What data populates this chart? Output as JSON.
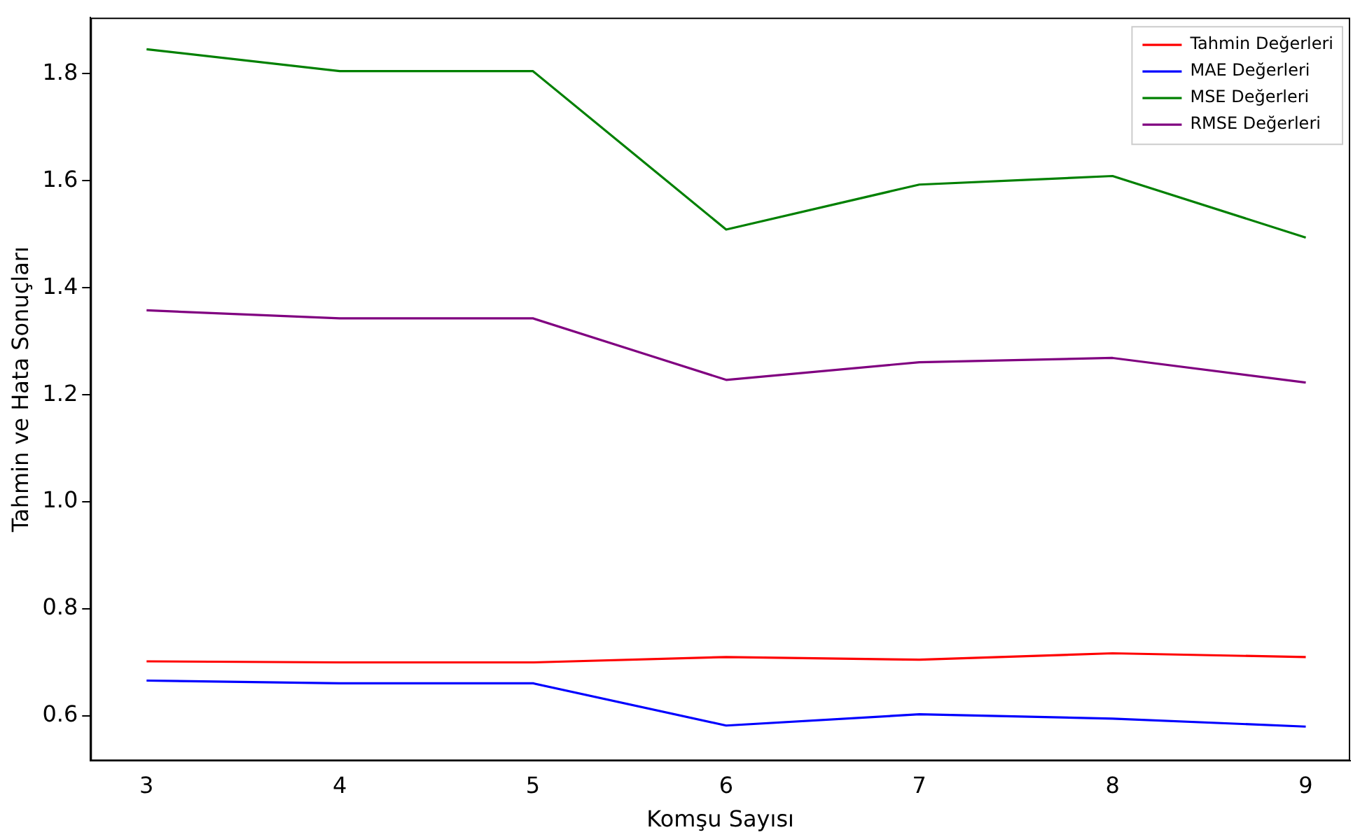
{
  "chart_data": {
    "type": "line",
    "xlabel": "Komşu Sayısı",
    "ylabel": "Tahmin ve Hata Sonuçları",
    "x": [
      3,
      4,
      5,
      6,
      7,
      8,
      9
    ],
    "series": [
      {
        "name": "Tahmin Değerleri",
        "color": "#ff0000",
        "values": [
          0.702,
          0.7,
          0.7,
          0.71,
          0.705,
          0.717,
          0.71
        ]
      },
      {
        "name": "MAE Değerleri",
        "color": "#0000ff",
        "values": [
          0.666,
          0.661,
          0.661,
          0.582,
          0.603,
          0.595,
          0.58
        ]
      },
      {
        "name": "MSE Değerleri",
        "color": "#008000",
        "values": [
          1.846,
          1.805,
          1.805,
          1.509,
          1.593,
          1.609,
          1.494
        ]
      },
      {
        "name": "RMSE Değerleri",
        "color": "#800080",
        "values": [
          1.358,
          1.343,
          1.343,
          1.228,
          1.261,
          1.269,
          1.223
        ]
      }
    ],
    "xlim": [
      2.71,
      9.23
    ],
    "xticks": [
      3,
      4,
      5,
      6,
      7,
      8,
      9
    ],
    "ylim": [
      0.516,
      1.905
    ],
    "yticks": [
      {
        "value": 0.6,
        "label": "0.6"
      },
      {
        "value": 0.8,
        "label": "0.8"
      },
      {
        "value": 1.0,
        "label": "1.0"
      },
      {
        "value": 1.2,
        "label": "1.2"
      },
      {
        "value": 1.4,
        "label": "1.4"
      },
      {
        "value": 1.6,
        "label": "1.6"
      },
      {
        "value": 1.8,
        "label": "1.8"
      }
    ],
    "legend": "top right",
    "grid": false,
    "marker": "none",
    "line_style": "solid"
  }
}
